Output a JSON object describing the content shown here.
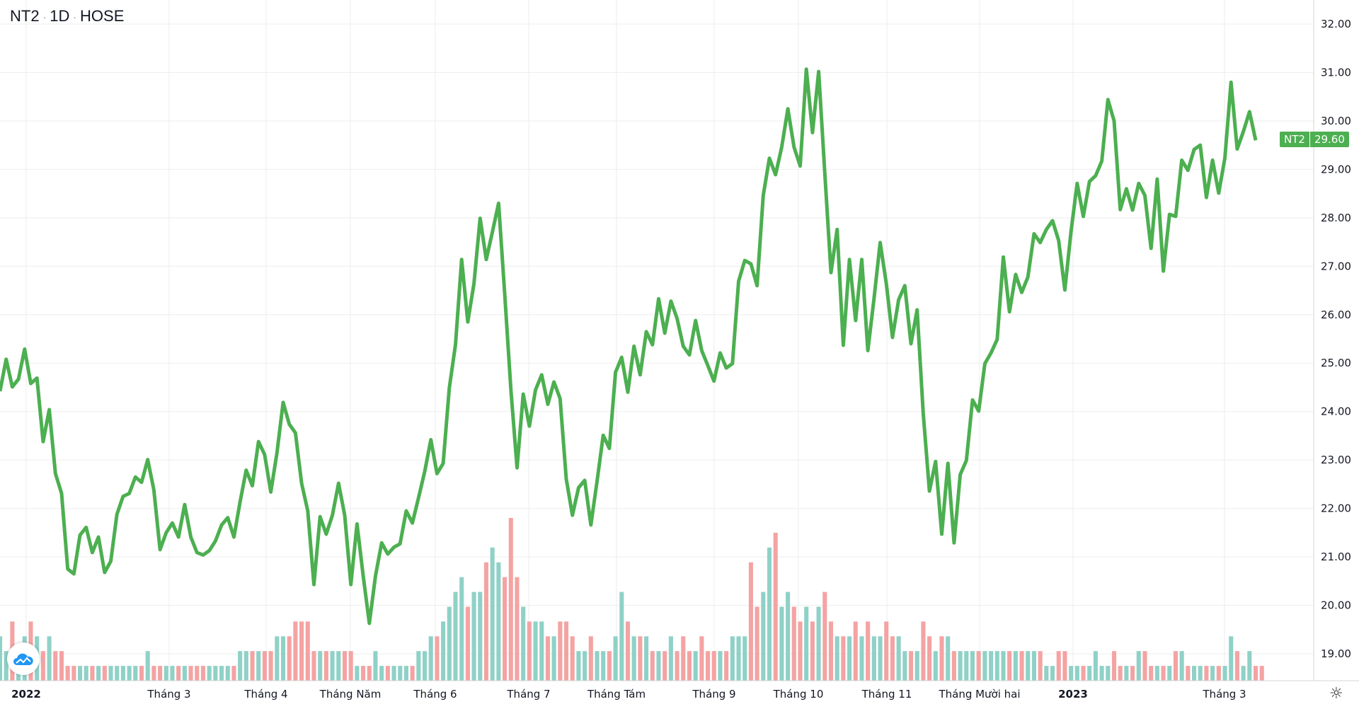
{
  "header": {
    "symbol": "NT2",
    "interval": "1D",
    "exchange": "HOSE"
  },
  "price_tag": {
    "symbol": "NT2",
    "value": "29.60"
  },
  "colors": {
    "line": "#4caf50",
    "vol_up": "#8fd1c7",
    "vol_down": "#f4a3a3",
    "grid": "#eeeeee"
  },
  "chart_data": {
    "type": "line",
    "title": "NT2 · 1D · HOSE",
    "ylim": [
      18.6,
      32.0
    ],
    "y_ticks": [
      "32.00",
      "31.00",
      "30.00",
      "29.00",
      "28.00",
      "27.00",
      "26.00",
      "25.00",
      "24.00",
      "23.00",
      "22.00",
      "21.00",
      "20.00",
      "19.00"
    ],
    "x_ticks": [
      {
        "label": "2022",
        "bold": true
      },
      {
        "label": "Tháng 3"
      },
      {
        "label": "Tháng 4"
      },
      {
        "label": "Tháng Năm"
      },
      {
        "label": "Tháng 6"
      },
      {
        "label": "Tháng 7"
      },
      {
        "label": "Tháng Tám"
      },
      {
        "label": "Tháng 9"
      },
      {
        "label": "Tháng 10"
      },
      {
        "label": "Tháng 11"
      },
      {
        "label": "Tháng Mười hai"
      },
      {
        "label": "2023",
        "bold": true
      },
      {
        "label": "Tháng 3"
      }
    ],
    "series": [
      {
        "name": "NT2 close",
        "values": [
          24.42,
          25.08,
          24.51,
          24.67,
          25.29,
          24.58,
          24.69,
          23.38,
          24.04,
          22.72,
          22.31,
          20.75,
          20.65,
          21.45,
          21.61,
          21.09,
          21.41,
          20.68,
          20.91,
          21.88,
          22.25,
          22.31,
          22.65,
          22.54,
          23.01,
          22.38,
          21.15,
          21.5,
          21.7,
          21.41,
          22.08,
          21.41,
          21.09,
          21.04,
          21.13,
          21.33,
          21.66,
          21.81,
          21.41,
          22.13,
          22.79,
          22.47,
          23.38,
          23.11,
          22.34,
          23.15,
          24.19,
          23.74,
          23.56,
          22.52,
          21.95,
          20.43,
          21.83,
          21.47,
          21.86,
          22.52,
          21.86,
          20.43,
          21.68,
          20.61,
          19.63,
          20.61,
          21.29,
          21.06,
          21.2,
          21.27,
          21.95,
          21.7,
          22.22,
          22.76,
          23.42,
          22.72,
          22.93,
          24.49,
          25.38,
          27.14,
          25.85,
          26.64,
          27.99,
          27.14,
          27.71,
          28.3,
          26.42,
          24.45,
          22.84,
          24.36,
          23.7,
          24.45,
          24.76,
          24.15,
          24.61,
          24.27,
          22.61,
          21.86,
          22.43,
          22.58,
          21.66,
          22.56,
          23.51,
          23.24,
          24.81,
          25.12,
          24.4,
          25.35,
          24.76,
          25.65,
          25.38,
          26.33,
          25.62,
          26.28,
          25.92,
          25.35,
          25.17,
          25.88,
          25.26,
          24.95,
          24.63,
          25.21,
          24.9,
          24.99,
          26.69,
          27.12,
          27.05,
          26.6,
          28.46,
          29.23,
          28.89,
          29.46,
          30.25,
          29.46,
          29.07,
          31.07,
          29.76,
          31.02,
          28.92,
          26.87,
          27.76,
          25.37,
          27.14,
          25.88,
          27.14,
          25.26,
          26.33,
          27.49,
          26.64,
          25.53,
          26.31,
          26.6,
          25.4,
          26.1,
          23.95,
          22.36,
          22.97,
          21.47,
          22.93,
          21.29,
          22.7,
          22.99,
          24.24,
          24.01,
          24.99,
          25.21,
          25.49,
          27.19,
          26.06,
          26.83,
          26.46,
          26.78,
          27.67,
          27.49,
          27.76,
          27.94,
          27.53,
          26.51,
          27.71,
          28.71,
          28.03,
          28.75,
          28.87,
          29.17,
          30.44,
          30.0,
          28.17,
          28.6,
          28.16,
          28.71,
          28.46,
          27.37,
          28.8,
          26.9,
          28.07,
          28.03,
          29.19,
          28.98,
          29.41,
          29.5,
          28.42,
          29.19,
          28.51,
          29.23,
          30.8,
          29.42,
          29.78,
          30.19,
          29.6
        ]
      },
      {
        "name": "Volume",
        "values": [
          3,
          2,
          4,
          2,
          3,
          4,
          3,
          2,
          3,
          2,
          2,
          1,
          1,
          1,
          1,
          1,
          1,
          1,
          1,
          1,
          1,
          1,
          1,
          1,
          2,
          1,
          1,
          1,
          1,
          1,
          1,
          1,
          1,
          1,
          1,
          1,
          1,
          1,
          1,
          2,
          2,
          2,
          2,
          2,
          2,
          3,
          3,
          3,
          4,
          4,
          4,
          2,
          2,
          2,
          2,
          2,
          2,
          2,
          1,
          1,
          1,
          2,
          1,
          1,
          1,
          1,
          1,
          1,
          2,
          2,
          3,
          3,
          4,
          5,
          6,
          7,
          5,
          6,
          6,
          8,
          9,
          8,
          7,
          11,
          7,
          5,
          4,
          4,
          4,
          3,
          3,
          4,
          4,
          3,
          2,
          2,
          3,
          2,
          2,
          2,
          3,
          6,
          4,
          3,
          3,
          3,
          2,
          2,
          2,
          3,
          2,
          3,
          2,
          2,
          3,
          2,
          2,
          2,
          2,
          3,
          3,
          3,
          8,
          5,
          6,
          9,
          10,
          5,
          6,
          5,
          4,
          5,
          4,
          5,
          6,
          4,
          3,
          3,
          3,
          4,
          3,
          4,
          3,
          3,
          4,
          3,
          3,
          2,
          2,
          2,
          4,
          3,
          2,
          3,
          3,
          2,
          2,
          2,
          2,
          2,
          2,
          2,
          2,
          2,
          2,
          2,
          2,
          2,
          2,
          2,
          1,
          1,
          2,
          2,
          1,
          1,
          1,
          1,
          2,
          1,
          1,
          2,
          1,
          1,
          1,
          2,
          2,
          1,
          1,
          1,
          1,
          2,
          2,
          1,
          1,
          1,
          1,
          1,
          1,
          1,
          3,
          2,
          1,
          2,
          1,
          1
        ]
      }
    ]
  }
}
